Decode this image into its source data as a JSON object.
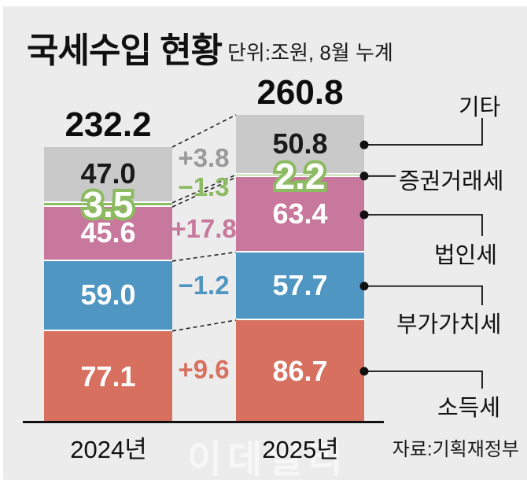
{
  "page": {
    "watermark": "이데일리"
  },
  "chart_data": {
    "type": "bar",
    "stacked": true,
    "title": "국세수입 현황",
    "unit_note": "단위:조원, 8월 누계",
    "categories": [
      "2024년",
      "2025년"
    ],
    "totals": [
      232.2,
      260.8
    ],
    "segments": [
      {
        "name": "소득세",
        "values": [
          77.1,
          86.7
        ],
        "delta": "+9.6",
        "color": "#d7705f",
        "delta_color": "#d7705f",
        "label_color": "#ffffff",
        "outlined": false
      },
      {
        "name": "부가가치세",
        "values": [
          59.0,
          57.7
        ],
        "delta": "−1.2",
        "color": "#4f96c2",
        "delta_color": "#4f96c2",
        "label_color": "#ffffff",
        "outlined": false
      },
      {
        "name": "법인세",
        "values": [
          45.6,
          63.4
        ],
        "delta": "+17.8",
        "color": "#c7789c",
        "delta_color": "#c7789c",
        "label_color": "#ffffff",
        "outlined": false
      },
      {
        "name": "증권거래세",
        "values": [
          3.5,
          2.2
        ],
        "delta": "−1.3",
        "color": "#8cbb62",
        "delta_color": "#8cbb62",
        "label_color": "#ffffff",
        "outlined": true
      },
      {
        "name": "기타",
        "values": [
          47.0,
          50.8
        ],
        "delta": "+3.8",
        "color": "#c9c9c9",
        "delta_color": "#9a9a9a",
        "label_color": "#1a1a1a",
        "outlined": false
      }
    ],
    "ylim": [
      0,
      260.8
    ],
    "legend_position": "right-callouts",
    "grid": false,
    "source": "자료:기획재정부"
  }
}
